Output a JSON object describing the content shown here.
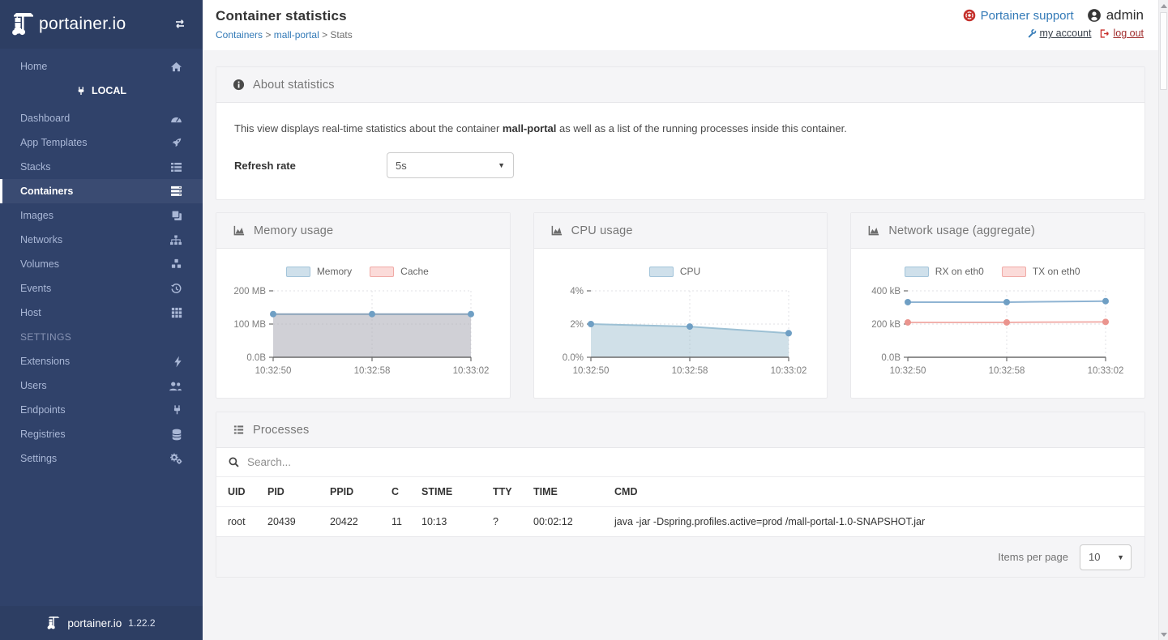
{
  "colors": {
    "sidebar_bg": "#30426a",
    "sidebar_header_bg": "#2d3e63",
    "accent_blue": "#337ab7",
    "danger_red": "#c9302c",
    "panel_header_text": "#767676",
    "chart_blue_line": "#8fb0c9",
    "chart_blue_fill": "rgba(151,187,205,0.45)",
    "chart_grey_fill": "rgba(176,176,186,0.6)",
    "chart_pink_line": "#f2b1ad"
  },
  "sidebar": {
    "logo_text": "portainer.io",
    "footer_logo_text": "portainer.io",
    "version": "1.22.2",
    "home": {
      "label": "Home",
      "icon": "home"
    },
    "local_label": "LOCAL",
    "items": [
      {
        "label": "Dashboard",
        "icon": "tachometer",
        "active": false
      },
      {
        "label": "App Templates",
        "icon": "rocket",
        "active": false
      },
      {
        "label": "Stacks",
        "icon": "list",
        "active": false
      },
      {
        "label": "Containers",
        "icon": "server",
        "active": true
      },
      {
        "label": "Images",
        "icon": "clone",
        "active": false
      },
      {
        "label": "Networks",
        "icon": "sitemap",
        "active": false
      },
      {
        "label": "Volumes",
        "icon": "cubes",
        "active": false
      },
      {
        "label": "Events",
        "icon": "history",
        "active": false
      },
      {
        "label": "Host",
        "icon": "th",
        "active": false
      }
    ],
    "settings_header": "SETTINGS",
    "settings_items": [
      {
        "label": "Extensions",
        "icon": "bolt",
        "active": false
      },
      {
        "label": "Users",
        "icon": "users",
        "active": false
      },
      {
        "label": "Endpoints",
        "icon": "plug",
        "active": false
      },
      {
        "label": "Registries",
        "icon": "database",
        "active": false
      },
      {
        "label": "Settings",
        "icon": "cogs",
        "active": false
      }
    ]
  },
  "header": {
    "title": "Container statistics",
    "breadcrumb": [
      {
        "label": "Containers",
        "link": true
      },
      {
        "label": "mall-portal",
        "link": true
      },
      {
        "label": "Stats",
        "link": false
      }
    ],
    "support_label": "Portainer support",
    "username": "admin",
    "my_account_label": "my account",
    "log_out_label": "log out"
  },
  "about_panel": {
    "title": "About statistics",
    "description_prefix": "This view displays real-time statistics about the container ",
    "container_name": "mall-portal",
    "description_suffix": " as well as a list of the running processes inside this container.",
    "refresh_label": "Refresh rate",
    "refresh_value": "5s"
  },
  "chart_data": [
    {
      "type": "area",
      "title": "Memory usage",
      "x": [
        "10:32:50",
        "10:32:58",
        "10:33:02"
      ],
      "yticks": [
        "200 MB",
        "100 MB",
        "0.0B"
      ],
      "ylim": [
        0,
        200
      ],
      "ylabel": "",
      "legend_position": "top",
      "series": [
        {
          "name": "Memory",
          "values": [
            130,
            130,
            130
          ],
          "filled": true,
          "line": "#8aa3ba",
          "fill": "rgba(176,176,186,0.6)",
          "point": "#6f9fc4",
          "legend_fill": "#cfe0eb",
          "legend_border": "#a3c4da"
        },
        {
          "name": "Cache",
          "values": [
            0,
            0,
            0
          ],
          "filled": true,
          "line": "#f2b1ad",
          "fill": "rgba(240,170,170,0.4)",
          "point": "#ea948e",
          "legend_fill": "#fbdbd9",
          "legend_border": "#f0aaa6"
        }
      ]
    },
    {
      "type": "area",
      "title": "CPU usage",
      "x": [
        "10:32:50",
        "10:32:58",
        "10:33:02"
      ],
      "yticks": [
        "4%",
        "2%",
        "0.0%"
      ],
      "ylim": [
        0,
        4
      ],
      "ylabel": "",
      "legend_position": "top",
      "series": [
        {
          "name": "CPU",
          "values": [
            2.0,
            1.85,
            1.45
          ],
          "filled": true,
          "line": "#9cc0d4",
          "fill": "rgba(151,187,205,0.45)",
          "point": "#6f9fc4",
          "legend_fill": "#cfe0eb",
          "legend_border": "#a3c4da"
        }
      ]
    },
    {
      "type": "line",
      "title": "Network usage (aggregate)",
      "x": [
        "10:32:50",
        "10:32:58",
        "10:33:02"
      ],
      "yticks": [
        "400 kB",
        "200 kB",
        "0.0B"
      ],
      "ylim": [
        0,
        400
      ],
      "ylabel": "",
      "legend_position": "top",
      "series": [
        {
          "name": "RX on eth0",
          "values": [
            332,
            332,
            338
          ],
          "filled": false,
          "line": "#8fb4d3",
          "fill": "none",
          "point": "#6f9fc4",
          "legend_fill": "#cfe0eb",
          "legend_border": "#a3c4da"
        },
        {
          "name": "TX on eth0",
          "values": [
            210,
            210,
            213
          ],
          "filled": false,
          "line": "#f2b1ad",
          "fill": "none",
          "point": "#ea948e",
          "legend_fill": "#fbdbd9",
          "legend_border": "#f0aaa6"
        }
      ]
    }
  ],
  "processes_panel": {
    "title": "Processes",
    "search_placeholder": "Search...",
    "columns": [
      "UID",
      "PID",
      "PPID",
      "C",
      "STIME",
      "TTY",
      "TIME",
      "CMD"
    ],
    "rows": [
      [
        "root",
        "20439",
        "20422",
        "11",
        "10:13",
        "?",
        "00:02:12",
        "java -jar -Dspring.profiles.active=prod /mall-portal-1.0-SNAPSHOT.jar"
      ]
    ],
    "items_per_page_label": "Items per page",
    "items_per_page_value": "10"
  }
}
